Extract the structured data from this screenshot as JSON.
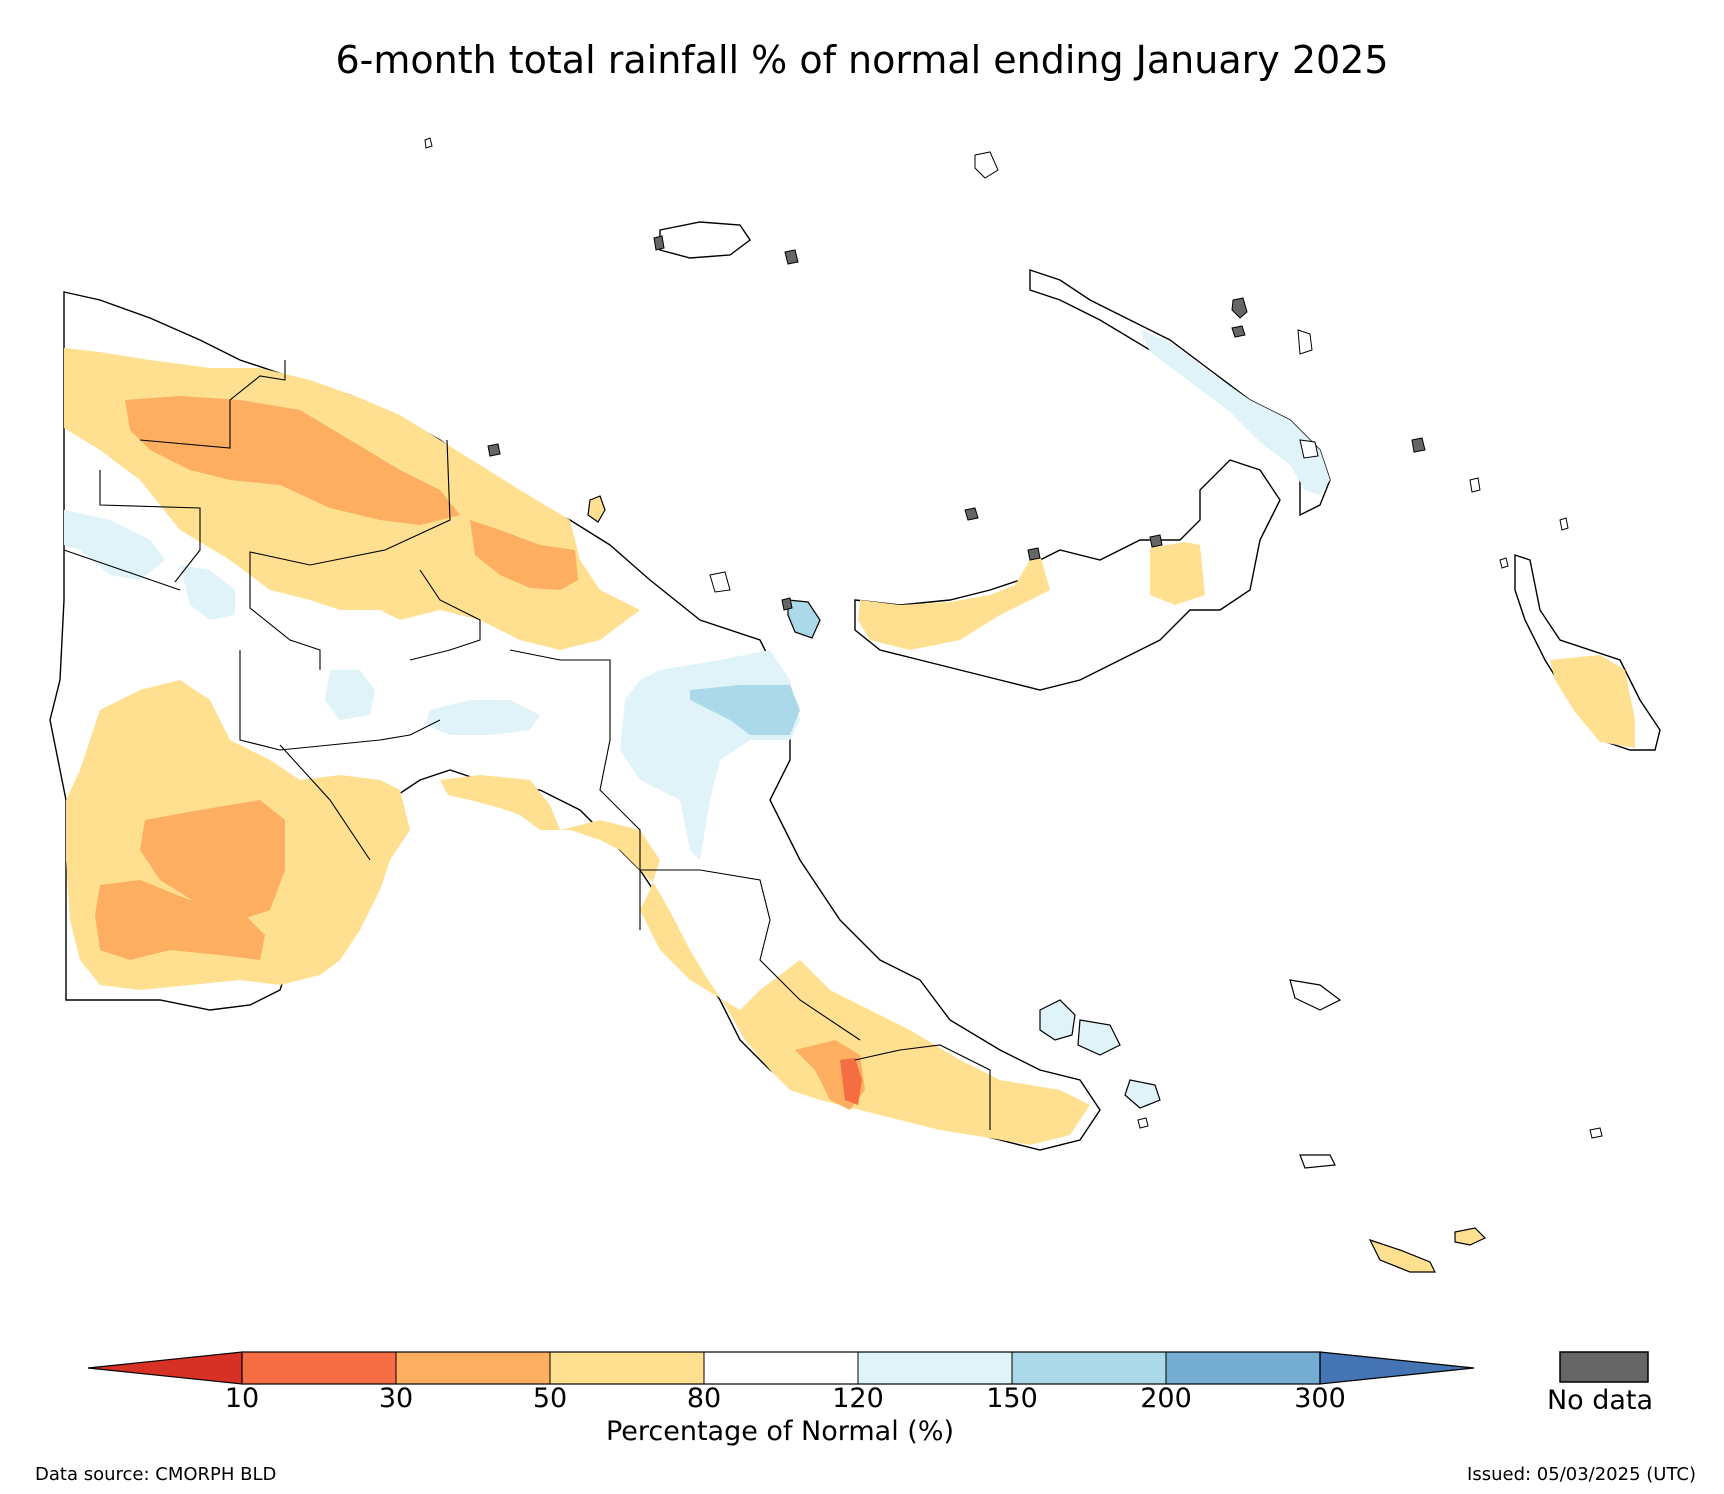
{
  "title": "6-month total rainfall % of normal ending January 2025",
  "colorbar": {
    "title": "Percentage of Normal (%)",
    "ticks": [
      "10",
      "30",
      "50",
      "80",
      "120",
      "150",
      "200",
      "300"
    ],
    "bins": [
      {
        "name": "<10",
        "color": "#d73027"
      },
      {
        "name": "10-30",
        "color": "#f46d43"
      },
      {
        "name": "30-50",
        "color": "#fdae61"
      },
      {
        "name": "50-80",
        "color": "#fee090"
      },
      {
        "name": "80-120",
        "color": "#ffffff"
      },
      {
        "name": "120-150",
        "color": "#e0f3f8"
      },
      {
        "name": "150-200",
        "color": "#abd9e9"
      },
      {
        "name": "200-300",
        "color": "#74add1"
      },
      {
        "name": ">300",
        "color": "#4575b4"
      }
    ],
    "no_data_label": "No data",
    "no_data_color": "#666666"
  },
  "footer": {
    "data_source": "Data source: CMORPH BLD",
    "issued": "Issued: 05/03/2025 (UTC)"
  }
}
